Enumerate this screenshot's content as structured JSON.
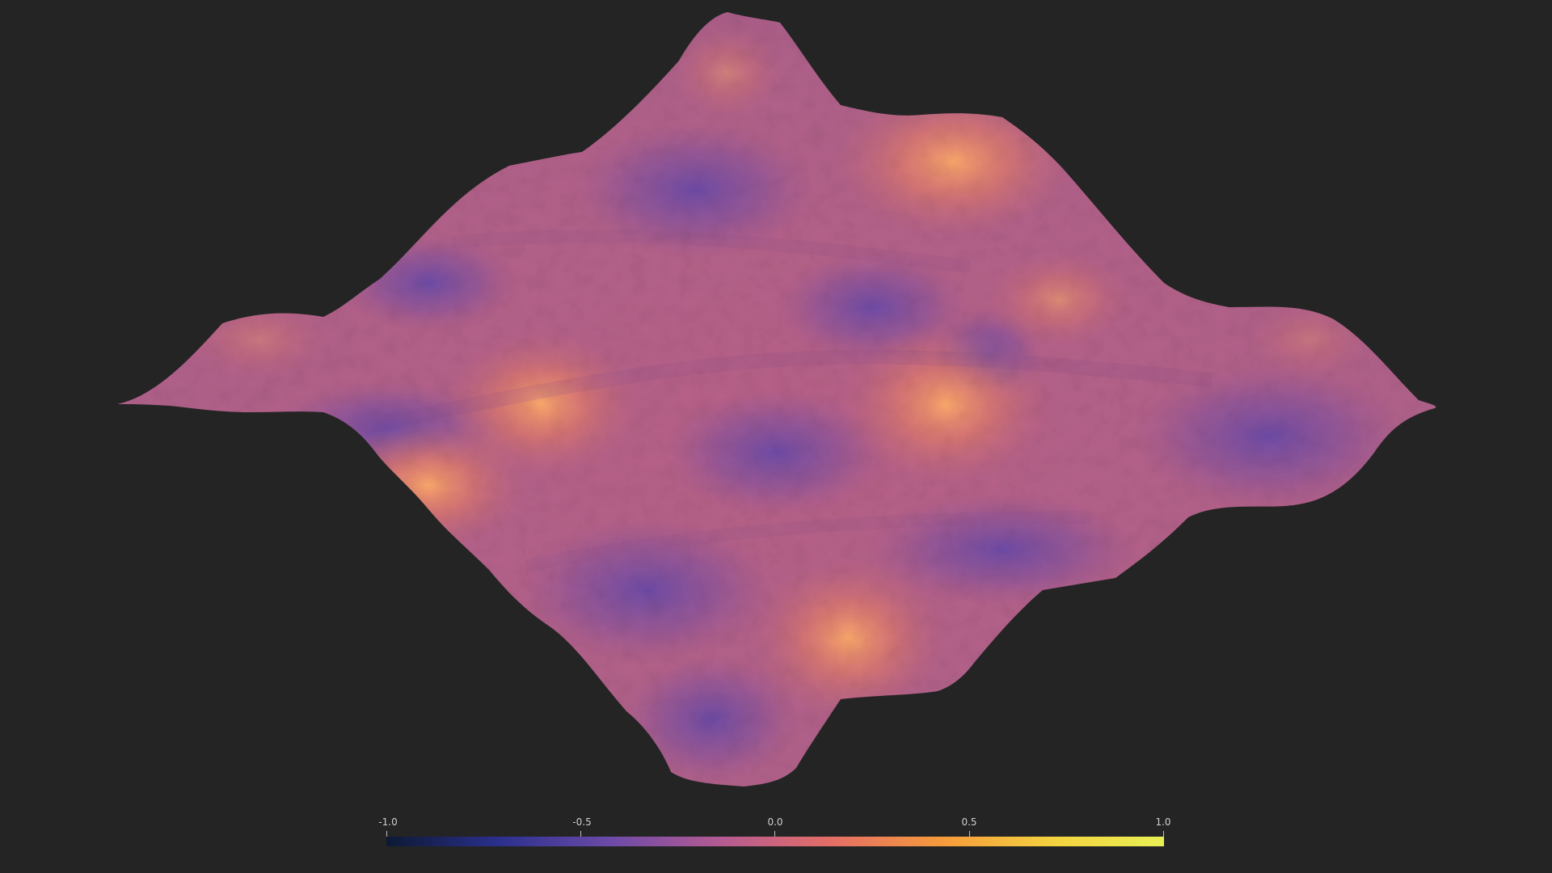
{
  "scene": {
    "background_color": "#242424",
    "object": "surface-mesh",
    "colormap": {
      "name": "plasma",
      "stops": [
        "#0d1a33",
        "#2a2f8c",
        "#6b4aa8",
        "#b45a93",
        "#e36e66",
        "#f59a3c",
        "#f4d23f",
        "#e8f055"
      ]
    }
  },
  "colorbar": {
    "ticks": [
      {
        "label": "-1.0",
        "value": -1.0
      },
      {
        "label": "-0.5",
        "value": -0.5
      },
      {
        "label": "0.0",
        "value": 0.0
      },
      {
        "label": "0.5",
        "value": 0.5
      },
      {
        "label": "1.0",
        "value": 1.0
      }
    ],
    "range": [
      -1.0,
      1.0
    ]
  }
}
